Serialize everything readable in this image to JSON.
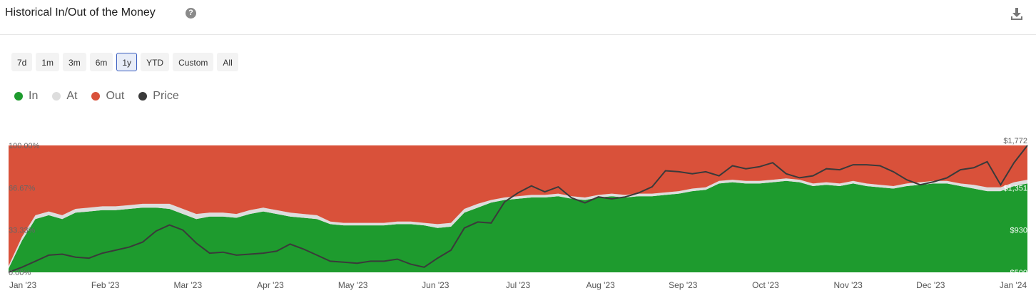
{
  "header": {
    "title": "Historical In/Out of the Money",
    "help_icon": "question-circle-icon",
    "download_icon": "download-icon"
  },
  "range_buttons": [
    "7d",
    "1m",
    "3m",
    "6m",
    "1y",
    "YTD",
    "Custom",
    "All"
  ],
  "active_range": "1y",
  "colors": {
    "in": "#1e9b2e",
    "at": "#dddddd",
    "out": "#d9513a",
    "price": "#3a3a3a"
  },
  "chart_data": {
    "type": "area",
    "title": "Historical In/Out of the Money",
    "x_ticks": [
      "Jan '23",
      "Feb '23",
      "Mar '23",
      "Apr '23",
      "May '23",
      "Jun '23",
      "Jul '23",
      "Aug '23",
      "Sep '23",
      "Oct '23",
      "Nov '23",
      "Dec '23",
      "Jan '24"
    ],
    "y_left_ticks": [
      "0.00%",
      "33.33%",
      "66.67%",
      "100.00%"
    ],
    "y_left_range": [
      0,
      100
    ],
    "y_right_ticks": [
      "$509",
      "$930",
      "$1,351",
      "$1,772"
    ],
    "y_right_range": [
      509,
      1772
    ],
    "stacked": true,
    "series": [
      {
        "name": "In",
        "unit": "%",
        "values": [
          3,
          25,
          42,
          45,
          42,
          47,
          48,
          49,
          49,
          50,
          51,
          51,
          50,
          46,
          42,
          44,
          44,
          43,
          46,
          48,
          46,
          44,
          43,
          42,
          38,
          37,
          37,
          37,
          37,
          38,
          38,
          37,
          35,
          36,
          47,
          51,
          55,
          57,
          58,
          59,
          59,
          60,
          58,
          57,
          59,
          60,
          59,
          60,
          60,
          61,
          62,
          64,
          65,
          70,
          71,
          70,
          70,
          71,
          72,
          71,
          68,
          69,
          68,
          70,
          68,
          67,
          66,
          68,
          69,
          70,
          70,
          68,
          66,
          64,
          64,
          68,
          70
        ]
      },
      {
        "name": "At",
        "unit": "%",
        "values": [
          2,
          3,
          3,
          3,
          3,
          3,
          3,
          3,
          3,
          3,
          3,
          3,
          4,
          4,
          4,
          3,
          3,
          3,
          3,
          3,
          3,
          3,
          3,
          3,
          2,
          2,
          2,
          2,
          2,
          2,
          2,
          2,
          3,
          3,
          3,
          3,
          2,
          2,
          2,
          2,
          2,
          2,
          2,
          2,
          2,
          2,
          2,
          2,
          2,
          2,
          2,
          2,
          2,
          2,
          2,
          2,
          2,
          2,
          2,
          2,
          2,
          2,
          2,
          2,
          2,
          2,
          2,
          2,
          2,
          2,
          2,
          2,
          3,
          3,
          3,
          3,
          3
        ]
      },
      {
        "name": "Out",
        "unit": "%",
        "values": [
          95,
          72,
          55,
          52,
          55,
          50,
          49,
          48,
          48,
          47,
          46,
          46,
          46,
          50,
          54,
          53,
          53,
          54,
          51,
          49,
          51,
          53,
          54,
          55,
          60,
          61,
          61,
          61,
          61,
          60,
          60,
          61,
          62,
          61,
          50,
          46,
          43,
          41,
          40,
          39,
          39,
          38,
          40,
          41,
          39,
          38,
          39,
          38,
          38,
          37,
          36,
          34,
          33,
          28,
          27,
          28,
          28,
          27,
          26,
          27,
          30,
          29,
          30,
          28,
          30,
          31,
          32,
          30,
          29,
          28,
          28,
          30,
          31,
          33,
          33,
          29,
          27
        ]
      },
      {
        "name": "Price",
        "unit": "USD",
        "values": [
          510,
          560,
          620,
          680,
          690,
          660,
          650,
          700,
          730,
          760,
          810,
          920,
          980,
          930,
          800,
          700,
          710,
          680,
          690,
          700,
          720,
          790,
          740,
          680,
          620,
          610,
          600,
          620,
          620,
          640,
          590,
          560,
          650,
          730,
          950,
          1010,
          1000,
          1210,
          1300,
          1370,
          1310,
          1360,
          1250,
          1200,
          1260,
          1240,
          1260,
          1300,
          1360,
          1520,
          1510,
          1490,
          1510,
          1470,
          1570,
          1540,
          1560,
          1600,
          1490,
          1450,
          1470,
          1540,
          1530,
          1580,
          1580,
          1570,
          1510,
          1430,
          1380,
          1410,
          1450,
          1530,
          1550,
          1610,
          1380,
          1600,
          1772
        ]
      }
    ],
    "legend": [
      "In",
      "At",
      "Out",
      "Price"
    ],
    "legend_position": "top-left",
    "grid": false
  }
}
